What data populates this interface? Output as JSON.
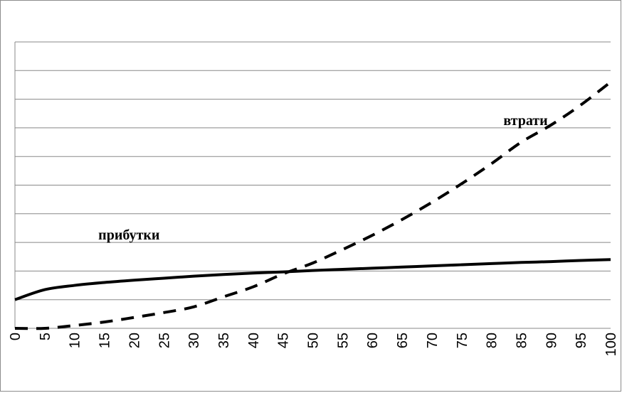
{
  "chart_data": {
    "type": "line",
    "title": "",
    "xlabel": "",
    "ylabel": "",
    "x": [
      0,
      5,
      10,
      15,
      20,
      25,
      30,
      35,
      40,
      45,
      50,
      55,
      60,
      65,
      70,
      75,
      80,
      85,
      90,
      95,
      100
    ],
    "xlim": [
      0,
      100
    ],
    "ylim": [
      0,
      10
    ],
    "y_ticks_labeled": false,
    "grid": "horizontal",
    "series": [
      {
        "name": "прибутки",
        "style": "solid",
        "color": "#000000",
        "values": [
          1.0,
          1.35,
          1.5,
          1.6,
          1.68,
          1.75,
          1.82,
          1.88,
          1.93,
          1.97,
          2.02,
          2.06,
          2.1,
          2.14,
          2.18,
          2.22,
          2.26,
          2.3,
          2.33,
          2.37,
          2.4
        ]
      },
      {
        "name": "втрати",
        "style": "dashed",
        "color": "#000000",
        "values": [
          0.0,
          0.0,
          0.1,
          0.22,
          0.38,
          0.55,
          0.75,
          1.1,
          1.45,
          1.9,
          2.28,
          2.75,
          3.25,
          3.8,
          4.4,
          5.05,
          5.75,
          6.5,
          7.1,
          7.8,
          8.6
        ]
      }
    ],
    "annotations": [
      {
        "text": "прибутки",
        "x": 14,
        "y": 3.1
      },
      {
        "text": "втрати",
        "x": 82,
        "y": 7.1
      }
    ],
    "legend": "none"
  }
}
